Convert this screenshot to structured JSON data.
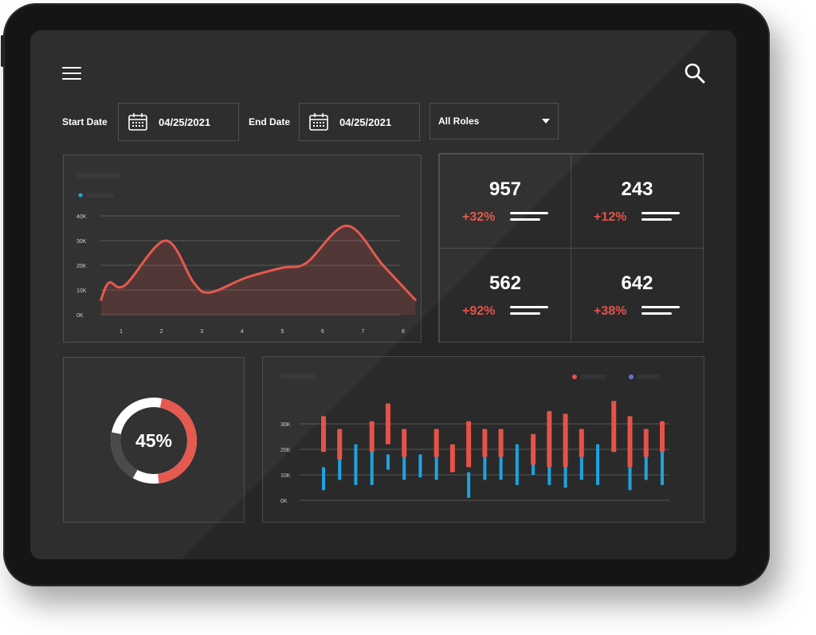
{
  "header": {
    "menu_icon": "hamburger-menu-icon",
    "search_icon": "search-icon"
  },
  "filters": {
    "start_label": "Start Date",
    "start_value": "04/25/2021",
    "end_label": "End Date",
    "end_value": "04/25/2021",
    "role_value": "All Roles"
  },
  "stats": [
    {
      "value": "957",
      "change": "+32%"
    },
    {
      "value": "243",
      "change": "+12%"
    },
    {
      "value": "562",
      "change": "+92%"
    },
    {
      "value": "642",
      "change": "+38%"
    }
  ],
  "donut": {
    "label": "45%",
    "percent": 45,
    "accent": "#e55348"
  },
  "colors": {
    "accent": "#e55348",
    "blue": "#1ea3e0",
    "grid": "#555555"
  },
  "chart_data": [
    {
      "type": "area",
      "title": "",
      "x": [
        1,
        2,
        3,
        4,
        5,
        6,
        7,
        8
      ],
      "y_ticks": [
        "0K",
        "10K",
        "20K",
        "30K",
        "40K"
      ],
      "x_ticks": [
        "1",
        "2",
        "3",
        "4",
        "5",
        "6",
        "7",
        "8"
      ],
      "ylim": [
        0,
        40
      ],
      "series": [
        {
          "points": [
            [
              0.5,
              6
            ],
            [
              0.7,
              13
            ],
            [
              1.1,
              12
            ],
            [
              2.1,
              30
            ],
            [
              2.8,
              13
            ],
            [
              3.2,
              9
            ],
            [
              4.1,
              15
            ],
            [
              5.0,
              19
            ],
            [
              5.6,
              21
            ],
            [
              6.6,
              36
            ],
            [
              7.5,
              20
            ],
            [
              8.3,
              6
            ]
          ]
        }
      ],
      "grid": true
    },
    {
      "type": "bar",
      "title": "",
      "y_ticks": [
        "0K",
        "10K",
        "20K",
        "30K"
      ],
      "ylim": [
        0,
        30
      ],
      "legend": "top-right",
      "series_red": [
        [
          19,
          33
        ],
        [
          16,
          28
        ],
        null,
        [
          19,
          31
        ],
        [
          22,
          38
        ],
        [
          17,
          28
        ],
        null,
        [
          17,
          28
        ],
        [
          11,
          22
        ],
        [
          13,
          31
        ],
        [
          17,
          28
        ],
        [
          17,
          28
        ],
        null,
        [
          14,
          26
        ],
        [
          13,
          35
        ],
        [
          13,
          34
        ],
        [
          17,
          28
        ],
        null,
        [
          19,
          39
        ],
        [
          13,
          33
        ],
        [
          17,
          28
        ],
        [
          19,
          31
        ]
      ],
      "series_blue": [
        [
          4,
          13
        ],
        [
          8,
          17
        ],
        [
          6,
          22
        ],
        [
          6,
          20
        ],
        [
          12,
          18
        ],
        [
          8,
          17
        ],
        [
          9,
          18
        ],
        [
          8,
          17
        ],
        null,
        [
          1,
          11
        ],
        [
          8,
          17
        ],
        [
          8,
          17
        ],
        [
          6,
          22
        ],
        [
          10,
          19
        ],
        [
          6,
          17
        ],
        [
          5,
          14
        ],
        [
          8,
          17
        ],
        [
          6,
          22
        ],
        null,
        [
          4,
          13
        ],
        [
          8,
          18
        ],
        [
          6,
          20
        ]
      ],
      "grid": true
    }
  ]
}
